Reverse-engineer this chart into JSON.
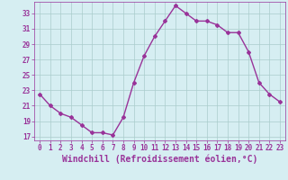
{
  "x": [
    0,
    1,
    2,
    3,
    4,
    5,
    6,
    7,
    8,
    9,
    10,
    11,
    12,
    13,
    14,
    15,
    16,
    17,
    18,
    19,
    20,
    21,
    22,
    23
  ],
  "y": [
    22.5,
    21.0,
    20.0,
    19.5,
    18.5,
    17.5,
    17.5,
    17.2,
    19.5,
    24.0,
    27.5,
    30.0,
    32.0,
    34.0,
    33.0,
    32.0,
    32.0,
    31.5,
    30.5,
    30.5,
    28.0,
    24.0,
    22.5,
    21.5
  ],
  "line_color": "#993399",
  "marker": "D",
  "marker_size": 2.0,
  "bg_color": "#d6eef2",
  "grid_color": "#aacccc",
  "xlabel": "Windchill (Refroidissement éolien,°C)",
  "xlabel_fontsize": 7,
  "yticks": [
    17,
    19,
    21,
    23,
    25,
    27,
    29,
    31,
    33
  ],
  "xticks": [
    0,
    1,
    2,
    3,
    4,
    5,
    6,
    7,
    8,
    9,
    10,
    11,
    12,
    13,
    14,
    15,
    16,
    17,
    18,
    19,
    20,
    21,
    22,
    23
  ],
  "ylim": [
    16.5,
    34.5
  ],
  "xlim": [
    -0.5,
    23.5
  ],
  "tick_fontsize": 5.5,
  "line_width": 1.0
}
